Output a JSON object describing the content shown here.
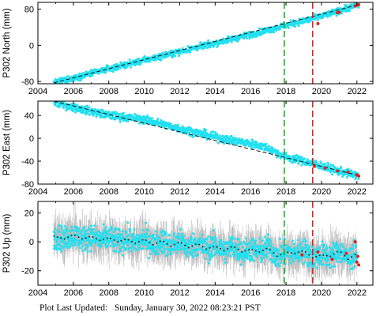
{
  "chart_data": [
    {
      "type": "scatter",
      "ylabel": "P302 North (mm)",
      "xlim": [
        2004,
        2022.9
      ],
      "ylim": [
        -85,
        95
      ],
      "yticks": [
        80,
        0,
        -80
      ],
      "xticks": [
        2004,
        2006,
        2008,
        2010,
        2012,
        2014,
        2016,
        2018,
        2020,
        2022
      ],
      "trend": {
        "start": [
          2004.9,
          -83
        ],
        "end": [
          2022.1,
          90
        ]
      },
      "observations": {
        "x": [
          2004.9,
          2006,
          2008,
          2010,
          2012,
          2014,
          2016,
          2018,
          2020,
          2022.1
        ],
        "y": [
          -83,
          -72,
          -52,
          -33,
          -14,
          5,
          24,
          44,
          64,
          90
        ]
      },
      "spread": 5,
      "vlines": [
        {
          "x": 2017.9,
          "color": "#22aa22"
        },
        {
          "x": 2019.5,
          "color": "#dd2222"
        }
      ],
      "red_points": {
        "x": [
          2019.8,
          2020.9,
          2021.0,
          2021.9,
          2022.0,
          2022.1
        ],
        "y": [
          48,
          72,
          73,
          87,
          89,
          90
        ]
      }
    },
    {
      "type": "scatter",
      "ylabel": "P302 East (mm)",
      "xlim": [
        2004,
        2022.9
      ],
      "ylim": [
        -80,
        65
      ],
      "yticks": [
        40,
        0,
        -40,
        -80
      ],
      "xticks": [
        2004,
        2006,
        2008,
        2010,
        2012,
        2014,
        2016,
        2018,
        2020,
        2022
      ],
      "trend": {
        "start": [
          2004.9,
          65
        ],
        "end": [
          2022.1,
          -65
        ]
      },
      "observations": {
        "x": [
          2004.9,
          2006,
          2007,
          2008,
          2010,
          2012,
          2013,
          2014,
          2015,
          2016,
          2016.8,
          2017.5,
          2018,
          2019,
          2020,
          2021,
          2022.1
        ],
        "y": [
          63,
          54,
          47,
          40,
          33,
          17,
          10,
          2,
          -4,
          -9,
          -15,
          -25,
          -33,
          -40,
          -48,
          -58,
          -65
        ]
      },
      "spread": 5,
      "vlines": [
        {
          "x": 2017.9,
          "color": "#22aa22"
        },
        {
          "x": 2019.5,
          "color": "#dd2222"
        }
      ],
      "red_points": {
        "x": [
          2019.6,
          2020.2,
          2020.9,
          2021.5,
          2022.0,
          2022.1
        ],
        "y": [
          -49,
          -52,
          -57,
          -59,
          -64,
          -66
        ]
      }
    },
    {
      "type": "scatter",
      "ylabel": "P302 Up (mm)",
      "xlim": [
        2004,
        2022.9
      ],
      "ylim": [
        -30,
        28
      ],
      "yticks": [
        20,
        0,
        -20
      ],
      "xticks": [
        2004,
        2006,
        2008,
        2010,
        2012,
        2014,
        2016,
        2018,
        2020,
        2022
      ],
      "observations": {
        "x": [
          2004.9,
          2005.5,
          2006,
          2006.5,
          2007,
          2007.5,
          2008,
          2008.5,
          2009,
          2009.5,
          2010,
          2010.5,
          2011,
          2011.5,
          2012,
          2012.5,
          2013,
          2013.5,
          2014,
          2014.5,
          2015,
          2015.5,
          2016,
          2016.5,
          2017,
          2017.5,
          2018,
          2018.5,
          2019,
          2019.5,
          2020,
          2020.5,
          2021,
          2021.5,
          2022
        ],
        "y": [
          4,
          2,
          5,
          2,
          4,
          1,
          3,
          0,
          2,
          -1,
          2,
          -2,
          1,
          -3,
          0,
          -4,
          -1,
          -5,
          -3,
          -6,
          -3,
          -7,
          -5,
          -7,
          -4,
          -10,
          -7,
          -8,
          -6,
          -11,
          -9,
          -10,
          -6,
          -12,
          -8
        ]
      },
      "spread": 6,
      "error_spread": 12,
      "vlines": [
        {
          "x": 2017.9,
          "color": "#22aa22"
        },
        {
          "x": 2019.5,
          "color": "#dd2222"
        }
      ],
      "red_points": {
        "x": [
          2018.9,
          2019.8,
          2020.6,
          2021.4,
          2021.9,
          2022.0,
          2022.05,
          2022.1
        ],
        "y": [
          -9,
          -7,
          -12,
          -8,
          0,
          -14,
          -10,
          -16
        ]
      }
    }
  ],
  "footer": {
    "label": "Plot Last Updated:",
    "timestamp": "Sunday, January 30, 2022 08:23:21 PST"
  },
  "colors": {
    "data": "#22e0f0",
    "error": "#b8b8b8",
    "trend": "#000000",
    "model": "#000000",
    "event": "#dd2222"
  }
}
